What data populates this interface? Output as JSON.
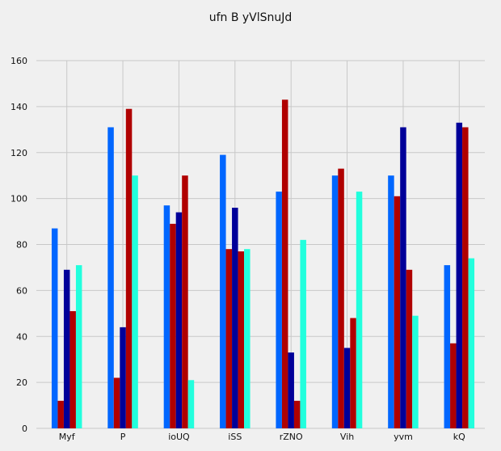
{
  "chart_data": {
    "type": "bar",
    "title": "ufn B yVlSnuJd",
    "xlabel": "",
    "ylabel": "",
    "ylim": [
      0,
      160
    ],
    "yticks": [
      0,
      20,
      40,
      60,
      80,
      100,
      120,
      140,
      160
    ],
    "grid": true,
    "legend": "none",
    "categories": [
      "Myf",
      "P",
      "ioUQ",
      "iSS",
      "rZNO",
      "Vih",
      "yvm",
      "kQ"
    ],
    "series": [
      {
        "color": "#0066ff",
        "values": [
          87,
          131,
          97,
          119,
          103,
          110,
          110,
          71
        ]
      },
      {
        "color": "#b00000",
        "values": [
          12,
          22,
          89,
          78,
          143,
          113,
          101,
          37
        ]
      },
      {
        "color": "#000099",
        "values": [
          69,
          44,
          94,
          96,
          33,
          35,
          131,
          133
        ]
      },
      {
        "color": "#b00000",
        "values": [
          51,
          139,
          110,
          77,
          12,
          48,
          69,
          131
        ]
      },
      {
        "color": "#22ffdd",
        "values": [
          71,
          110,
          21,
          78,
          82,
          103,
          49,
          74
        ]
      }
    ]
  }
}
